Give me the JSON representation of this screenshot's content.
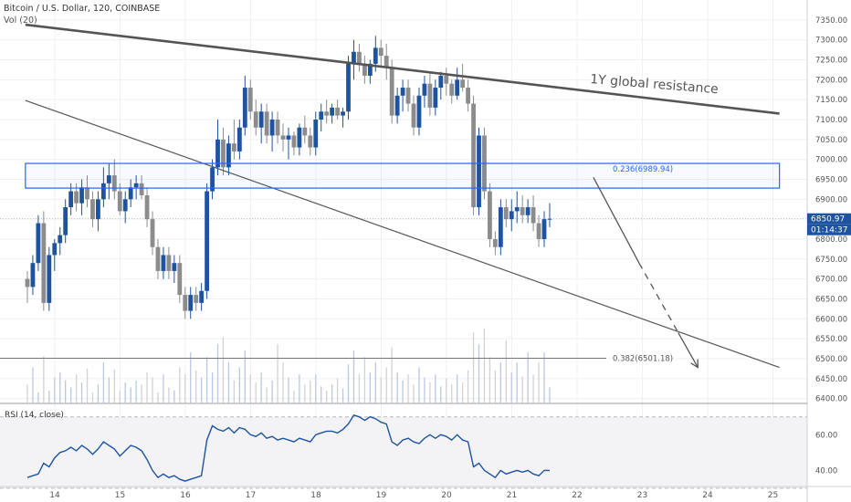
{
  "header": {
    "symbol_line": "Bitcoin / U.S. Dollar, 120, COINBASE",
    "volume_label": "Vol (20)"
  },
  "colors": {
    "up": "#1e53a0",
    "down": "#8c8c8c",
    "trendline": "#555555",
    "box": "#2962ff",
    "rsi_line": "#1e53a0",
    "price_badge": "#1e53a0"
  },
  "chart_data": [
    {
      "type": "candlestick",
      "title": "Bitcoin / U.S. Dollar, 120, COINBASE",
      "x_ticks": [
        "14",
        "15",
        "16",
        "17",
        "18",
        "19",
        "20",
        "21",
        "22",
        "23",
        "24",
        "25"
      ],
      "x_range_days": [
        13.55,
        25.1
      ],
      "ylim": [
        6390,
        7400
      ],
      "y_ticks": [
        6400,
        6450,
        6500,
        6550,
        6600,
        6650,
        6700,
        6750,
        6800,
        6850,
        6900,
        6950,
        7000,
        7050,
        7100,
        7150,
        7200,
        7250,
        7300,
        7350
      ],
      "y_scale": "linear",
      "candles_interval_hours": 2,
      "first_candle_day": 13.58,
      "candles": [
        [
          6700,
          6720,
          6640,
          6680
        ],
        [
          6680,
          6760,
          6660,
          6740
        ],
        [
          6740,
          6860,
          6720,
          6840
        ],
        [
          6840,
          6870,
          6620,
          6640
        ],
        [
          6640,
          6780,
          6620,
          6760
        ],
        [
          6760,
          6800,
          6720,
          6790
        ],
        [
          6790,
          6830,
          6760,
          6810
        ],
        [
          6810,
          6900,
          6790,
          6880
        ],
        [
          6880,
          6940,
          6860,
          6920
        ],
        [
          6920,
          6940,
          6870,
          6890
        ],
        [
          6890,
          6950,
          6860,
          6930
        ],
        [
          6930,
          6960,
          6880,
          6900
        ],
        [
          6900,
          6920,
          6830,
          6850
        ],
        [
          6850,
          6920,
          6820,
          6900
        ],
        [
          6900,
          6980,
          6880,
          6940
        ],
        [
          6940,
          6990,
          6900,
          6960
        ],
        [
          6960,
          7000,
          6900,
          6920
        ],
        [
          6920,
          6940,
          6860,
          6870
        ],
        [
          6870,
          6920,
          6840,
          6900
        ],
        [
          6900,
          6950,
          6880,
          6930
        ],
        [
          6930,
          6960,
          6900,
          6940
        ],
        [
          6940,
          6960,
          6900,
          6910
        ],
        [
          6910,
          6930,
          6830,
          6850
        ],
        [
          6850,
          6870,
          6760,
          6780
        ],
        [
          6780,
          6800,
          6700,
          6720
        ],
        [
          6720,
          6780,
          6700,
          6760
        ],
        [
          6760,
          6780,
          6700,
          6720
        ],
        [
          6720,
          6760,
          6690,
          6740
        ],
        [
          6740,
          6760,
          6640,
          6660
        ],
        [
          6660,
          6680,
          6600,
          6620
        ],
        [
          6620,
          6680,
          6600,
          6660
        ],
        [
          6660,
          6680,
          6620,
          6640
        ],
        [
          6640,
          6690,
          6620,
          6670
        ],
        [
          6670,
          6940,
          6650,
          6920
        ],
        [
          6920,
          7000,
          6900,
          6980
        ],
        [
          6980,
          7100,
          6960,
          7050
        ],
        [
          7050,
          7080,
          6960,
          6980
        ],
        [
          6980,
          7060,
          6960,
          7040
        ],
        [
          7040,
          7100,
          7000,
          7020
        ],
        [
          7020,
          7100,
          7000,
          7080
        ],
        [
          7080,
          7210,
          7060,
          7180
        ],
        [
          7180,
          7200,
          7100,
          7120
        ],
        [
          7120,
          7150,
          7060,
          7080
        ],
        [
          7080,
          7140,
          7040,
          7120
        ],
        [
          7120,
          7140,
          7040,
          7060
        ],
        [
          7060,
          7120,
          7020,
          7100
        ],
        [
          7100,
          7120,
          7040,
          7060
        ],
        [
          7060,
          7090,
          7020,
          7050
        ],
        [
          7050,
          7080,
          7000,
          7060
        ],
        [
          7060,
          7070,
          7010,
          7030
        ],
        [
          7030,
          7090,
          7010,
          7080
        ],
        [
          7080,
          7110,
          7040,
          7060
        ],
        [
          7060,
          7080,
          7010,
          7030
        ],
        [
          7030,
          7120,
          7010,
          7100
        ],
        [
          7100,
          7140,
          7070,
          7120
        ],
        [
          7120,
          7150,
          7090,
          7110
        ],
        [
          7110,
          7140,
          7090,
          7130
        ],
        [
          7130,
          7150,
          7100,
          7110
        ],
        [
          7110,
          7130,
          7080,
          7120
        ],
        [
          7120,
          7260,
          7100,
          7240
        ],
        [
          7240,
          7300,
          7200,
          7270
        ],
        [
          7270,
          7290,
          7220,
          7240
        ],
        [
          7240,
          7260,
          7190,
          7210
        ],
        [
          7210,
          7250,
          7190,
          7240
        ],
        [
          7240,
          7310,
          7220,
          7280
        ],
        [
          7280,
          7300,
          7230,
          7260
        ],
        [
          7260,
          7290,
          7200,
          7230
        ],
        [
          7230,
          7250,
          7090,
          7110
        ],
        [
          7110,
          7180,
          7090,
          7160
        ],
        [
          7160,
          7200,
          7120,
          7180
        ],
        [
          7180,
          7200,
          7120,
          7140
        ],
        [
          7140,
          7160,
          7060,
          7080
        ],
        [
          7080,
          7180,
          7060,
          7160
        ],
        [
          7160,
          7210,
          7130,
          7190
        ],
        [
          7190,
          7220,
          7110,
          7130
        ],
        [
          7130,
          7200,
          7110,
          7180
        ],
        [
          7180,
          7220,
          7150,
          7210
        ],
        [
          7210,
          7230,
          7160,
          7190
        ],
        [
          7190,
          7200,
          7140,
          7160
        ],
        [
          7160,
          7230,
          7150,
          7200
        ],
        [
          7200,
          7240,
          7170,
          7180
        ],
        [
          7180,
          7200,
          7120,
          7140
        ],
        [
          7140,
          7160,
          6860,
          6880
        ],
        [
          6880,
          7080,
          6860,
          7060
        ],
        [
          7060,
          7080,
          6900,
          6920
        ],
        [
          6920,
          6940,
          6780,
          6800
        ],
        [
          6800,
          6820,
          6760,
          6780
        ],
        [
          6780,
          6900,
          6760,
          6880
        ],
        [
          6880,
          6900,
          6830,
          6850
        ],
        [
          6850,
          6900,
          6820,
          6870
        ],
        [
          6870,
          6920,
          6840,
          6880
        ],
        [
          6880,
          6910,
          6840,
          6860
        ],
        [
          6860,
          6900,
          6840,
          6880
        ],
        [
          6880,
          6910,
          6820,
          6840
        ],
        [
          6840,
          6860,
          6780,
          6800
        ],
        [
          6800,
          6870,
          6780,
          6850
        ],
        [
          6850,
          6890,
          6830,
          6851
        ]
      ],
      "annotations": {
        "resistance_label": "1Y global resistance",
        "fib_236_label": "0.236(6989.94)",
        "fib_236_value": 6989.94,
        "fib_382_label": "0.382(6501.18)",
        "fib_382_value": 6501.18,
        "zone": {
          "day_from": 13.55,
          "day_to": 25.1,
          "y_low": 6928,
          "y_high": 6990
        },
        "resistance_line": {
          "from": [
            13.55,
            7338
          ],
          "to": [
            25.1,
            7115
          ]
        },
        "support_line": {
          "from": [
            13.55,
            7148
          ],
          "to": [
            25.1,
            6478
          ]
        },
        "projection_arrow": {
          "solid_from": [
            22.25,
            6955
          ],
          "solid_to": [
            22.95,
            6740
          ],
          "dashed_to": [
            23.55,
            6565
          ],
          "head_at": [
            23.85,
            6478
          ]
        }
      },
      "last_price_label": "6850.97",
      "last_price_value": 6850.97,
      "countdown_label": "01:14:37"
    },
    {
      "type": "bar",
      "title": "Vol (20)",
      "values": [
        0.18,
        0.35,
        0.1,
        0.46,
        0.12,
        0.25,
        0.3,
        0.22,
        0.15,
        0.28,
        0.2,
        0.34,
        0.1,
        0.18,
        0.4,
        0.25,
        0.33,
        0.12,
        0.2,
        0.15,
        0.22,
        0.18,
        0.3,
        0.25,
        0.1,
        0.28,
        0.15,
        0.12,
        0.35,
        0.28,
        0.5,
        0.32,
        0.25,
        0.45,
        0.3,
        0.58,
        0.65,
        0.4,
        0.22,
        0.35,
        0.52,
        0.28,
        0.2,
        0.3,
        0.15,
        0.22,
        0.58,
        0.4,
        0.25,
        0.12,
        0.28,
        0.18,
        0.22,
        0.28,
        0.16,
        0.12,
        0.18,
        0.24,
        0.14,
        0.38,
        0.52,
        0.28,
        0.45,
        0.3,
        0.4,
        0.25,
        0.35,
        0.55,
        0.3,
        0.22,
        0.28,
        0.18,
        0.35,
        0.25,
        0.2,
        0.28,
        0.16,
        0.24,
        0.18,
        0.28,
        0.2,
        0.32,
        0.7,
        0.58,
        0.74,
        0.45,
        0.32,
        0.4,
        0.62,
        0.3,
        0.4,
        0.26,
        0.5,
        0.28,
        0.4,
        0.5,
        0.15
      ]
    },
    {
      "type": "line",
      "title": "RSI (14, close)",
      "ylim": [
        32,
        76
      ],
      "y_ticks": [
        40,
        60
      ],
      "band": [
        30,
        70
      ],
      "values": [
        36,
        37,
        38,
        44,
        42,
        47,
        50,
        51,
        53,
        51,
        54,
        52,
        49,
        52,
        56,
        54,
        52,
        48,
        51,
        54,
        53,
        51,
        46,
        40,
        36,
        38,
        36,
        37,
        35,
        34,
        35,
        36,
        37,
        57,
        65,
        63,
        62,
        64,
        61,
        64,
        63,
        60,
        59,
        61,
        58,
        59,
        57,
        58,
        57,
        56,
        58,
        57,
        56,
        60,
        61,
        62,
        62,
        61,
        63,
        66,
        71,
        70,
        68,
        70,
        69,
        67,
        66,
        56,
        54,
        57,
        58,
        56,
        55,
        58,
        60,
        58,
        60,
        59,
        57,
        60,
        57,
        56,
        42,
        44,
        40,
        38,
        36,
        40,
        38,
        39,
        40,
        39,
        40,
        38,
        37,
        40,
        40
      ]
    }
  ]
}
